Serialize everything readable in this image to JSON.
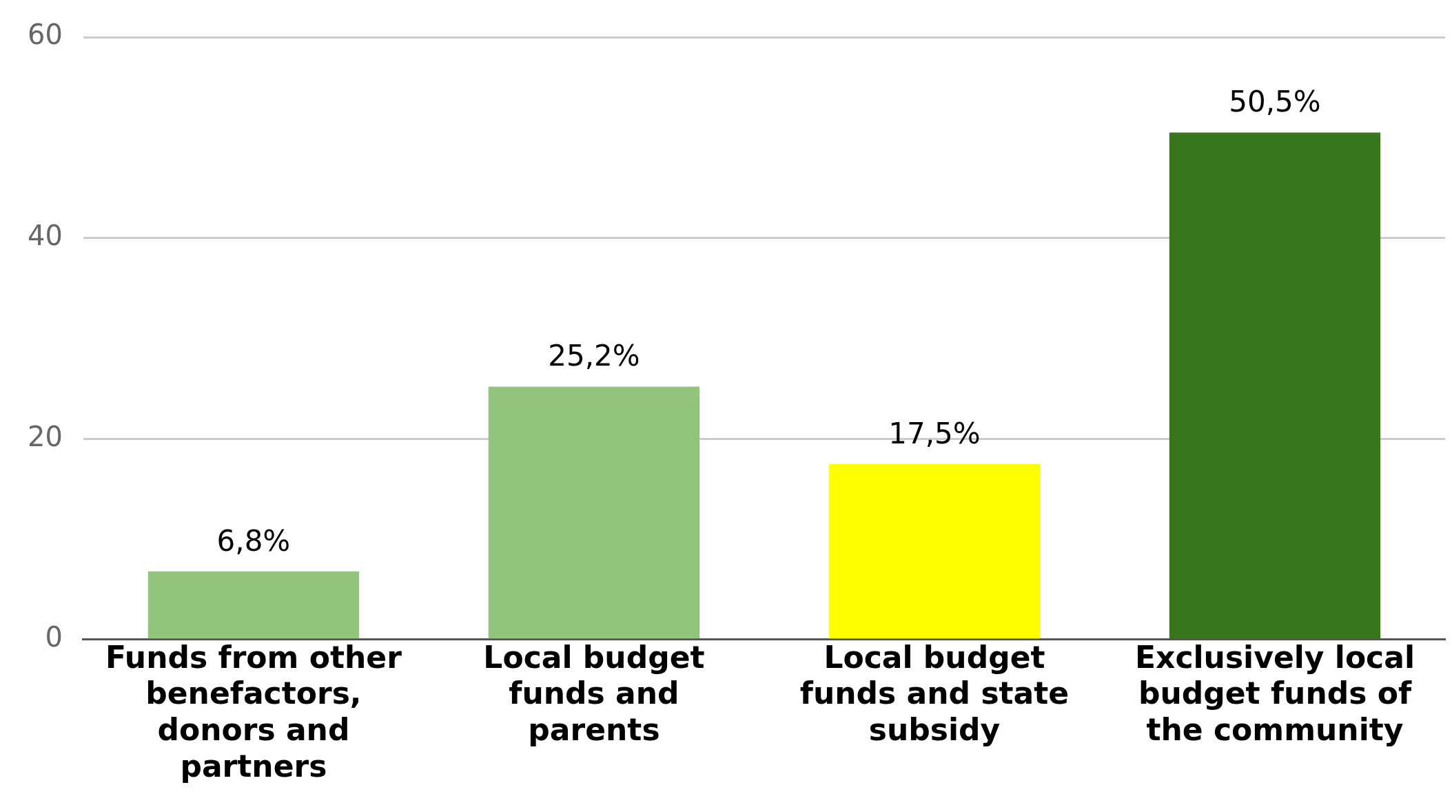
{
  "chart_data": {
    "type": "bar",
    "categories": [
      "Funds from other benefactors, donors and partners",
      "Local budget funds and parents",
      "Local budget funds and state subsidy",
      "Exclusively local budget funds of the community"
    ],
    "values": [
      6.8,
      25.2,
      17.5,
      50.5
    ],
    "colors": [
      "#93c47d",
      "#93c47d",
      "#ffff00",
      "#38761d"
    ],
    "value_labels": [
      "6,8%",
      "25,2%",
      "17,5%",
      "50,5%"
    ],
    "ylim": [
      0,
      60
    ],
    "yticks": [
      0,
      20,
      40,
      60
    ],
    "grid": "y",
    "legend": false
  }
}
